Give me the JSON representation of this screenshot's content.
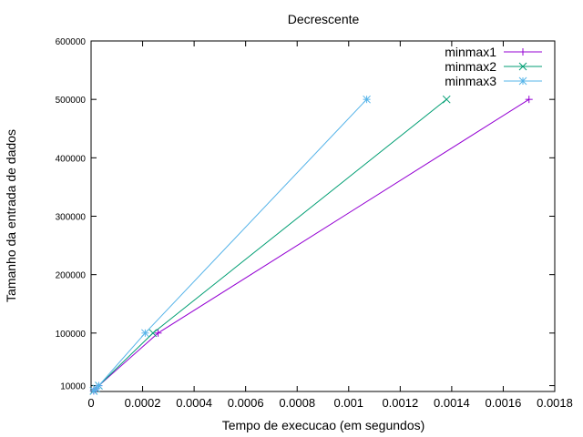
{
  "chart_data": {
    "type": "line",
    "title": "Decrescente",
    "xlabel": "Tempo de execucao (em segundos)",
    "ylabel": "Tamanho da entrada de dados",
    "xlim": [
      0,
      0.0018
    ],
    "ylim": [
      0,
      600000
    ],
    "x_ticks": [
      "0",
      "0.0002",
      "0.0004",
      "0.0006",
      "0.0008",
      "0.001",
      "0.0012",
      "0.0014",
      "0.0016",
      "0.0018"
    ],
    "y_ticks": [
      "10000",
      "100000",
      "200000",
      "300000",
      "400000",
      "500000",
      "600000"
    ],
    "grid": false,
    "legend_position": "top-right",
    "series": [
      {
        "name": "minmax1",
        "color": "#9400d3",
        "marker": "plus",
        "points": [
          [
            1e-05,
            1000
          ],
          [
            2e-05,
            5000
          ],
          [
            3e-05,
            10000
          ],
          [
            0.00026,
            100000
          ],
          [
            0.0017,
            500000
          ]
        ]
      },
      {
        "name": "minmax2",
        "color": "#009e73",
        "marker": "cross",
        "points": [
          [
            1e-05,
            1000
          ],
          [
            2e-05,
            5000
          ],
          [
            3e-05,
            10000
          ],
          [
            0.00024,
            100000
          ],
          [
            0.00138,
            500000
          ]
        ]
      },
      {
        "name": "minmax3",
        "color": "#56b4e9",
        "marker": "star",
        "points": [
          [
            1e-05,
            1000
          ],
          [
            2e-05,
            5000
          ],
          [
            3e-05,
            10000
          ],
          [
            0.00021,
            100000
          ],
          [
            0.00107,
            500000
          ]
        ]
      }
    ]
  }
}
